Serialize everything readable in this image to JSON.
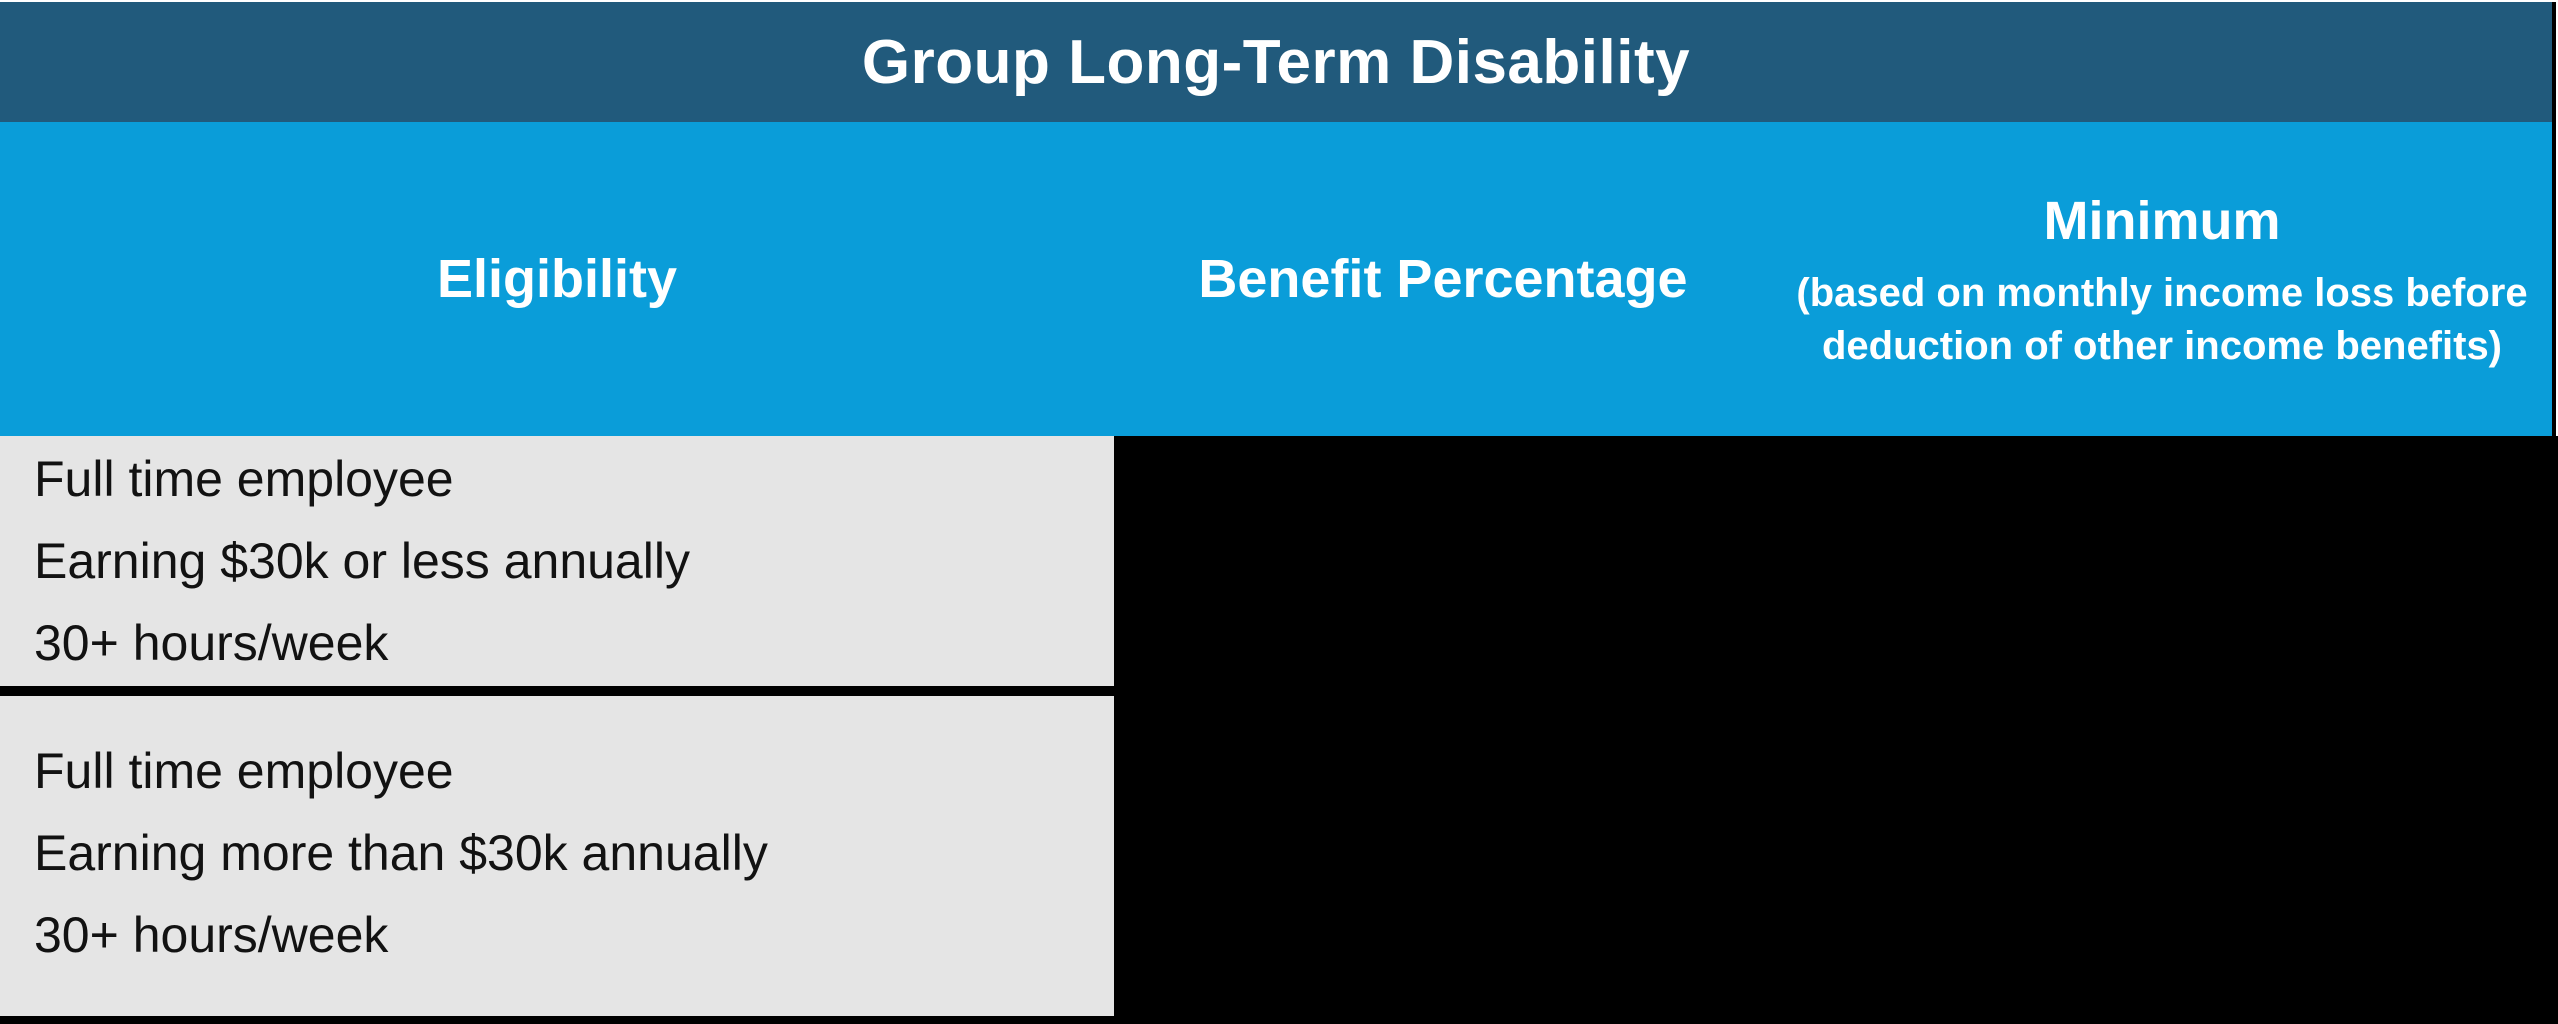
{
  "table": {
    "title": "Group Long-Term Disability",
    "columns": [
      {
        "label": "Eligibility"
      },
      {
        "label": "Benefit Percentage"
      },
      {
        "label": "Minimum",
        "sublabel": "(based on monthly income loss before deduction of other income benefits)"
      }
    ],
    "rows": [
      {
        "lines": [
          "Full time employee",
          "Earning $30k or less annually",
          "30+ hours/week"
        ]
      },
      {
        "lines": [
          "Full time employee",
          "Earning more than $30k annually",
          "30+ hours/week"
        ]
      }
    ],
    "colors": {
      "title_bar_bg": "#215A7C",
      "header_bg": "#0A9DD9",
      "row_bg": "#E5E5E5",
      "redaction_black": "#000000",
      "header_text": "#FFFFFF",
      "body_text": "#121212"
    }
  }
}
